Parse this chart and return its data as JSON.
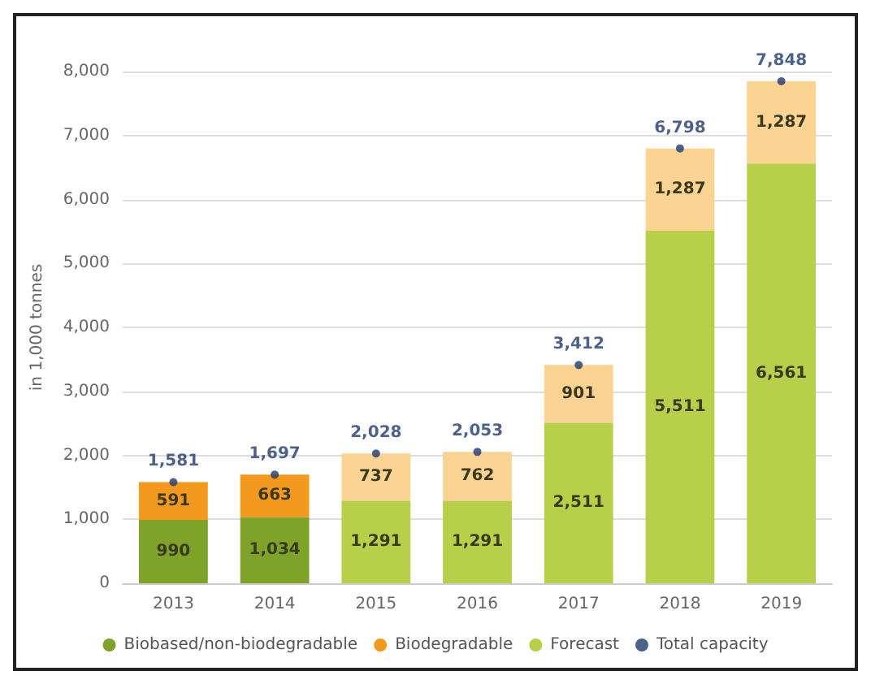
{
  "chart_data": {
    "type": "bar",
    "stacked": true,
    "ylabel": "in 1,000 tonnes",
    "categories": [
      "2013",
      "2014",
      "2015",
      "2016",
      "2017",
      "2018",
      "2019"
    ],
    "series": [
      {
        "name": "Biobased/non-biodegradable",
        "color": "#7ea328",
        "values": [
          990,
          1034,
          null,
          null,
          null,
          null,
          null
        ],
        "value_labels": [
          "990",
          "1,034",
          null,
          null,
          null,
          null,
          null
        ]
      },
      {
        "name": "Biodegradable",
        "color": "#f39a1e",
        "values": [
          591,
          663,
          null,
          null,
          null,
          null,
          null
        ],
        "value_labels": [
          "591",
          "663",
          null,
          null,
          null,
          null,
          null
        ]
      },
      {
        "name": "Forecast",
        "color": "#b8cf4a",
        "values": [
          null,
          null,
          1291,
          1291,
          2511,
          5511,
          6561
        ],
        "value_labels": [
          null,
          null,
          "1,291",
          "1,291",
          "2,511",
          "5,511",
          "6,561"
        ]
      },
      {
        "color": "#fbd393",
        "values": [
          null,
          null,
          737,
          762,
          901,
          1287,
          1287
        ],
        "value_labels": [
          null,
          null,
          "737",
          "762",
          "901",
          "1,287",
          "1,287"
        ]
      },
      {
        "name": "Total capacity",
        "type": "scatter",
        "marker": "circle",
        "color": "#1f3a6e",
        "values": [
          1581,
          1697,
          2028,
          2053,
          3412,
          6798,
          7848
        ],
        "value_labels": [
          "1,581",
          "1,697",
          "2,028",
          "2,053",
          "3,412",
          "6,798",
          "7,848"
        ]
      }
    ],
    "ylim": [
      0,
      8000
    ],
    "yticks": [
      {
        "value": 0,
        "label": "0"
      },
      {
        "value": 1000,
        "label": "1,000"
      },
      {
        "value": 2000,
        "label": "2,000"
      },
      {
        "value": 3000,
        "label": "3,000"
      },
      {
        "value": 4000,
        "label": "4,000"
      },
      {
        "value": 5000,
        "label": "5,000"
      },
      {
        "value": 6000,
        "label": "6,000"
      },
      {
        "value": 7000,
        "label": "7,000"
      },
      {
        "value": 8000,
        "label": "8,000"
      }
    ],
    "grid": "y",
    "legend": "bottom"
  }
}
